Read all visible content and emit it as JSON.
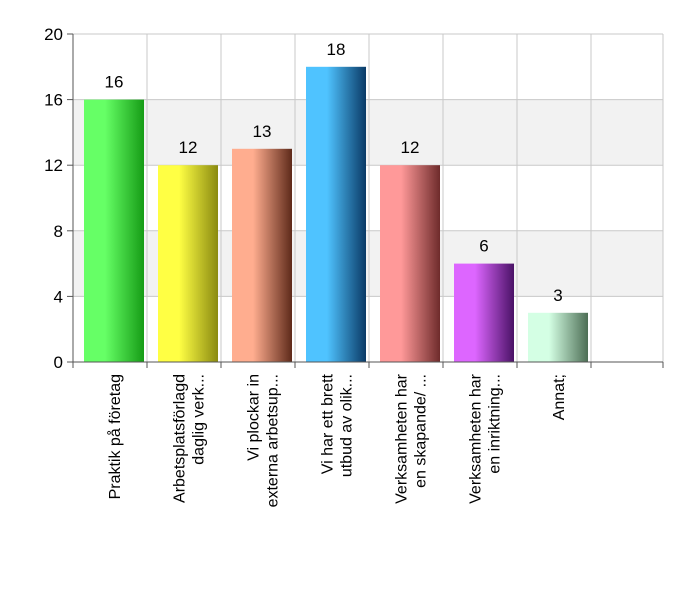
{
  "chart_data": {
    "type": "bar",
    "title": "",
    "xlabel": "",
    "ylabel": "",
    "ylim": [
      0,
      20
    ],
    "yticks": [
      0,
      4,
      8,
      12,
      16,
      20
    ],
    "grid": "horizontal",
    "legend": "none",
    "categories": [
      [
        "Praktik på företag"
      ],
      [
        "Arbetsplatsförlagd",
        "daglig verk..."
      ],
      [
        "Vi plockar in",
        "externa arbetsup..."
      ],
      [
        "Vi har ett brett",
        "utbud av olik..."
      ],
      [
        "Verksamheten har",
        "en skapande/ ..."
      ],
      [
        "Verksamheten har",
        "en inriktning..."
      ],
      [
        "Annat;"
      ]
    ],
    "values": [
      16,
      12,
      13,
      18,
      12,
      6,
      3
    ],
    "colors": [
      [
        "#66ff66",
        "#169c16"
      ],
      [
        "#ffff44",
        "#8a8a10"
      ],
      [
        "#ffad8f",
        "#5e2a1a"
      ],
      [
        "#4fc3ff",
        "#0a3a66"
      ],
      [
        "#ff9999",
        "#6e2b2b"
      ],
      [
        "#dd66ff",
        "#4a1266"
      ],
      [
        "#d4ffe4",
        "#4d6e55"
      ]
    ]
  }
}
